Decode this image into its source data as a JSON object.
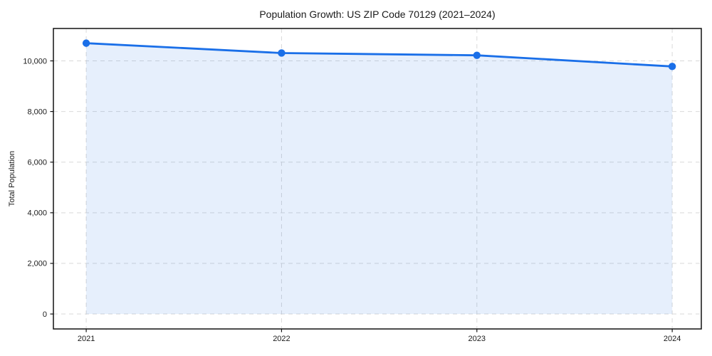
{
  "chart_data": {
    "type": "area",
    "title": "Population Growth: US ZIP Code 70129 (2021–2024)",
    "xlabel": "",
    "ylabel": "Total Population",
    "x": [
      2021,
      2022,
      2023,
      2024
    ],
    "series": [
      {
        "name": "Total Population",
        "values": [
          10700,
          10310,
          10220,
          9780
        ]
      }
    ],
    "xticks": [
      2021,
      2022,
      2023,
      2024
    ],
    "xtick_labels": [
      "2021",
      "2022",
      "2023",
      "2024"
    ],
    "yticks": [
      0,
      2000,
      4000,
      6000,
      8000,
      10000
    ],
    "ytick_labels": [
      "0",
      "2,000",
      "4,000",
      "6,000",
      "8,000",
      "10,000"
    ],
    "xlim": [
      2020.832,
      2024.149
    ],
    "ylim": [
      -590,
      11280
    ],
    "fill_baseline": 0,
    "grid": true,
    "grid_style": "dashed",
    "legend": false,
    "colors": {
      "line": "#1a6fe8",
      "fill": "#1a6fe8",
      "fill_opacity": 0.11,
      "grid": "#d9d9d9",
      "axis": "#111111",
      "text": "#1a1a1a",
      "background": "#ffffff"
    }
  }
}
